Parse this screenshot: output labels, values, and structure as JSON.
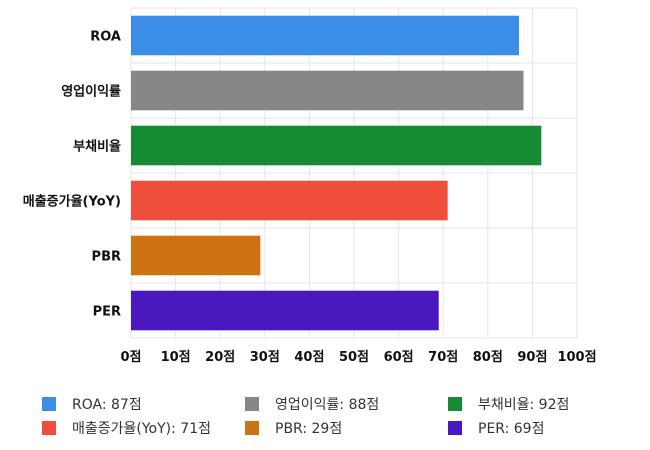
{
  "chart_data": {
    "type": "bar",
    "orientation": "horizontal",
    "categories": [
      "ROA",
      "영업이익률",
      "부채비율",
      "매출증가율(YoY)",
      "PBR",
      "PER"
    ],
    "values": [
      87,
      88,
      92,
      71,
      29,
      69
    ],
    "colors": [
      "#3a8ee6",
      "#878787",
      "#168b34",
      "#ee4e3a",
      "#cd7215",
      "#4b18bf"
    ],
    "xlim": [
      0,
      100
    ],
    "x_ticks": [
      "0점",
      "10점",
      "20점",
      "30점",
      "40점",
      "50점",
      "60점",
      "70점",
      "80점",
      "90점",
      "100점"
    ],
    "grid": true,
    "legend_position": "bottom",
    "legend": [
      {
        "label": "ROA: 87점",
        "color": "#3a8ee6"
      },
      {
        "label": "영업이익률: 88점",
        "color": "#878787"
      },
      {
        "label": "부채비율: 92점",
        "color": "#168b34"
      },
      {
        "label": "매출증가율(YoY): 71점",
        "color": "#ee4e3a"
      },
      {
        "label": "PBR: 29점",
        "color": "#cd7215"
      },
      {
        "label": "PER: 69점",
        "color": "#4b18bf"
      }
    ]
  }
}
